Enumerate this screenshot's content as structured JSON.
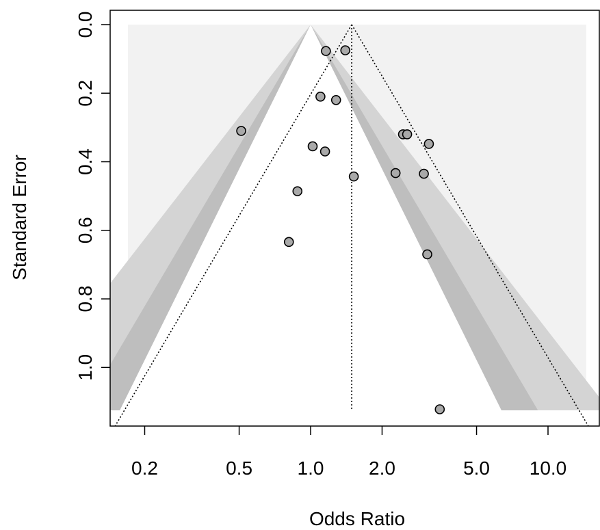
{
  "chart_data": {
    "type": "scatter",
    "subtype": "contour-enhanced funnel plot",
    "xlabel": "Odds Ratio",
    "ylabel": "Standard Error",
    "x_scale": "log",
    "y_reversed": true,
    "x_ticks": [
      {
        "value": 0.2,
        "label": "0.2"
      },
      {
        "value": 0.5,
        "label": "0.5"
      },
      {
        "value": 1.0,
        "label": "1.0"
      },
      {
        "value": 2.0,
        "label": "2.0"
      },
      {
        "value": 5.0,
        "label": "5.0"
      },
      {
        "value": 10.0,
        "label": "10.0"
      }
    ],
    "y_ticks": [
      {
        "value": 0.0,
        "label": "0.0"
      },
      {
        "value": 0.2,
        "label": "0.2"
      },
      {
        "value": 0.4,
        "label": "0.4"
      },
      {
        "value": 0.6,
        "label": "0.6"
      },
      {
        "value": 0.8,
        "label": "0.8"
      },
      {
        "value": 1.0,
        "label": "1.0"
      }
    ],
    "xlim": [
      0.17,
      14.5
    ],
    "ylim": [
      0.0,
      1.125
    ],
    "pooled_estimate": 1.49,
    "contour_levels": [
      {
        "z": 1.645,
        "color": "#d4d4d4"
      },
      {
        "z": 1.96,
        "color": "#bebebe"
      },
      {
        "z": 2.576,
        "color": "#f2f2f2"
      }
    ],
    "background_color": "#f2f2f2",
    "reference_line_x": 1.0,
    "point_fill": "#a9a9a9",
    "points": [
      {
        "x": 1.16,
        "y": 0.077
      },
      {
        "x": 1.4,
        "y": 0.075
      },
      {
        "x": 1.1,
        "y": 0.21
      },
      {
        "x": 1.28,
        "y": 0.22
      },
      {
        "x": 0.51,
        "y": 0.31
      },
      {
        "x": 2.45,
        "y": 0.32
      },
      {
        "x": 2.55,
        "y": 0.32
      },
      {
        "x": 3.15,
        "y": 0.348
      },
      {
        "x": 1.02,
        "y": 0.355
      },
      {
        "x": 1.15,
        "y": 0.37
      },
      {
        "x": 1.52,
        "y": 0.443
      },
      {
        "x": 2.28,
        "y": 0.433
      },
      {
        "x": 3.0,
        "y": 0.435
      },
      {
        "x": 0.88,
        "y": 0.486
      },
      {
        "x": 0.81,
        "y": 0.634
      },
      {
        "x": 3.1,
        "y": 0.67
      },
      {
        "x": 3.5,
        "y": 1.122
      }
    ]
  }
}
